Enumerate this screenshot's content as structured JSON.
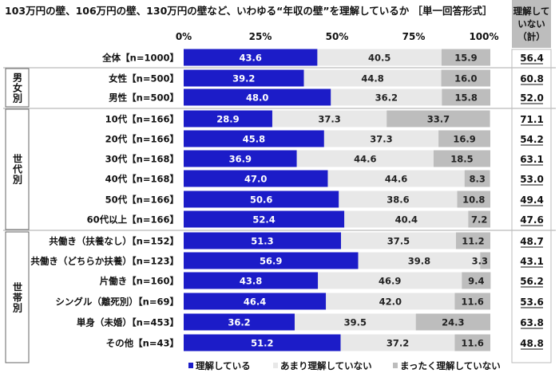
{
  "chart_data": {
    "type": "bar",
    "stacked": true,
    "orientation": "horizontal",
    "title": "103万円の壁、106万円の壁、130万円の壁など、いわゆる“年収の壁”を理解しているか ［単一回答形式］",
    "xlim": [
      0,
      100
    ],
    "x_ticks": [
      "0%",
      "25%",
      "50%",
      "75%",
      "100%"
    ],
    "legend_position": "bottom",
    "grid": false,
    "groups": [
      {
        "label": "",
        "rows": [
          0
        ]
      },
      {
        "label": "男女別",
        "rows": [
          1,
          2
        ]
      },
      {
        "label": "世代別",
        "rows": [
          3,
          4,
          5,
          6,
          7,
          8
        ]
      },
      {
        "label": "世帯別",
        "rows": [
          9,
          10,
          11,
          12,
          13,
          14
        ]
      }
    ],
    "categories": [
      "全体【n=1000】",
      "女性【n=500】",
      "男性【n=500】",
      "10代【n=166】",
      "20代【n=166】",
      "30代【n=168】",
      "40代【n=168】",
      "50代【n=166】",
      "60代以上【n=166】",
      "共働き（扶養なし）【n=152】",
      "共働き（どちらか扶養）【n=123】",
      "片働き【n=160】",
      "シングル（離死別）【n=69】",
      "単身（未婚）【n=453】",
      "その他【n=43】"
    ],
    "series": [
      {
        "name": "理解している",
        "color": "#1c1cc8",
        "values": [
          43.6,
          39.2,
          48.0,
          28.9,
          45.8,
          36.9,
          47.0,
          50.6,
          52.4,
          51.3,
          56.9,
          43.8,
          46.4,
          36.2,
          51.2
        ]
      },
      {
        "name": "あまり理解していない",
        "color": "#e8e8e8",
        "values": [
          40.5,
          44.8,
          36.2,
          37.3,
          37.3,
          44.6,
          44.6,
          38.6,
          40.4,
          37.5,
          39.8,
          46.9,
          42.0,
          39.5,
          37.2
        ]
      },
      {
        "name": "まったく理解していない",
        "color": "#bdbdbd",
        "values": [
          15.9,
          16.0,
          15.8,
          33.7,
          16.9,
          18.5,
          8.3,
          10.8,
          7.2,
          11.2,
          3.3,
          9.4,
          11.6,
          24.3,
          11.6
        ]
      }
    ],
    "side_column": {
      "header": [
        "理解して",
        "いない",
        "（計）"
      ],
      "values": [
        "56.4",
        "60.8",
        "52.0",
        "71.1",
        "54.2",
        "63.1",
        "53.0",
        "49.4",
        "47.6",
        "48.7",
        "43.1",
        "56.2",
        "53.6",
        "63.8",
        "48.8"
      ]
    }
  }
}
